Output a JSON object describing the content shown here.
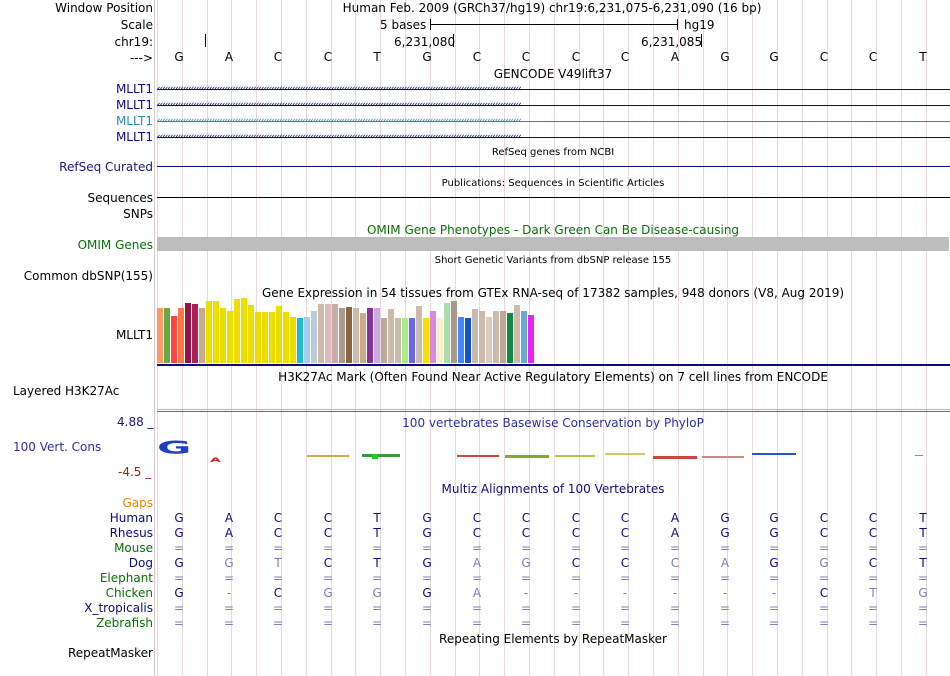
{
  "header": {
    "window_position_label": "Window Position",
    "assembly_position": "Human Feb. 2009 (GRCh37/hg19)   chr19:6,231,075-6,231,090 (16 bp)",
    "scale_label": "Scale",
    "scale_text": "5 bases",
    "scale_db": "hg19",
    "chrom_label": "chr19:",
    "coord_1": "6,231,080",
    "coord_2": "6,231,085",
    "strand_label": "--->"
  },
  "sequence": [
    "G",
    "A",
    "C",
    "C",
    "T",
    "G",
    "C",
    "C",
    "C",
    "C",
    "A",
    "G",
    "G",
    "C",
    "C",
    "T"
  ],
  "gencode": {
    "title": "GENCODE V49lift37",
    "tracks": [
      {
        "name": "MLLT1",
        "color": "#0c0c78"
      },
      {
        "name": "MLLT1",
        "color": "#0c0c78"
      },
      {
        "name": "MLLT1",
        "color": "#2e87b3"
      },
      {
        "name": "MLLT1",
        "color": "#0c0c78"
      }
    ],
    "arrow_glyph": "‹"
  },
  "refseq": {
    "label": "RefSeq Curated",
    "title": "RefSeq genes from NCBI"
  },
  "publications": {
    "label": "Sequences",
    "title": "Publications: Sequences in Scientific Articles"
  },
  "snps": {
    "label": "SNPs"
  },
  "omim": {
    "label": "OMIM Genes",
    "title": "OMIM Gene Phenotypes - Dark Green Can Be Disease-causing"
  },
  "dbsnp": {
    "label": "Common dbSNP(155)",
    "title": "Short Genetic Variants from dbSNP release 155"
  },
  "gtex": {
    "label": "MLLT1",
    "title": "Gene Expression in 54 tissues from GTEx RNA-seq of 17382 samples, 948 donors (V8, Aug 2019)",
    "values": [
      55,
      55,
      47,
      55,
      60,
      59,
      55,
      62,
      62,
      55,
      52,
      64,
      65,
      58,
      51,
      51,
      51,
      57,
      51,
      46,
      45,
      46,
      52,
      59,
      59,
      59,
      55,
      56,
      55,
      50,
      55,
      55,
      45,
      54,
      45,
      45,
      45,
      57,
      45,
      52,
      45,
      60,
      62,
      46,
      45,
      54,
      52,
      46,
      52,
      52,
      50,
      58,
      52,
      48
    ],
    "colors": [
      "#ff9966",
      "#66aa44",
      "#ff4444",
      "#ff7744",
      "#991144",
      "#aa2255",
      "#ccaa88",
      "#eedd00",
      "#eedd00",
      "#eedd00",
      "#eedd00",
      "#eedd00",
      "#eedd00",
      "#eedd00",
      "#eedd00",
      "#eedd00",
      "#eedd00",
      "#eedd00",
      "#eedd00",
      "#eedd00",
      "#22bbcc",
      "#aaccee",
      "#bbccdd",
      "#ccbbaa",
      "#ddbbbb",
      "#ccaaaa",
      "#aa9988",
      "#886644",
      "#ccbbaa",
      "#ccaa88",
      "#883399",
      "#ccaadd",
      "#bbaa99",
      "#ccbbaa",
      "#ccbbaa",
      "#aaee88",
      "#6666ee",
      "#ccbbaa",
      "#ffdd00",
      "#dd88dd",
      "#ffeecc",
      "#aaddaa",
      "#aa9988",
      "#4488ff",
      "#1155cc",
      "#ccbbaa",
      "#ccbbaa",
      "#ddccbb",
      "#ccbbaa",
      "#bbaa99",
      "#118844",
      "#ccbbaa",
      "#66aadd",
      "#ee22ee"
    ]
  },
  "h3k27ac": {
    "label": "Layered H3K27Ac",
    "title": "H3K27Ac Mark (Often Found Near Active Regulatory Elements) on 7 cell lines from ENCODE"
  },
  "phylop": {
    "label": "100 Vert. Cons",
    "title": "100 vertebrates Basewise Conservation by PhyloP",
    "max_label": "4.88 _",
    "min_label": "-4.5 _"
  },
  "multiz": {
    "title": "Multiz Alignments of 100 Vertebrates",
    "gaps_label": "Gaps",
    "species": [
      {
        "name": "Human",
        "color": "#0c0c78",
        "bases": [
          "G",
          "A",
          "C",
          "C",
          "T",
          "G",
          "C",
          "C",
          "C",
          "C",
          "A",
          "G",
          "G",
          "C",
          "C",
          "T"
        ]
      },
      {
        "name": "Rhesus",
        "color": "#0c0c78",
        "bases": [
          "G",
          "A",
          "C",
          "C",
          "T",
          "G",
          "C",
          "C",
          "C",
          "C",
          "A",
          "G",
          "G",
          "C",
          "C",
          "T"
        ]
      },
      {
        "name": "Mouse",
        "color": "#0a6e0a",
        "bases": [
          "=",
          "=",
          "=",
          "=",
          "=",
          "=",
          "=",
          "=",
          "=",
          "=",
          "=",
          "=",
          "=",
          "=",
          "=",
          "="
        ]
      },
      {
        "name": "Dog",
        "color": "#0c0c78",
        "bases": [
          "G",
          "G",
          "T",
          "C",
          "T",
          "G",
          "A",
          "G",
          "C",
          "C",
          "C",
          "A",
          "G",
          "G",
          "C",
          "T"
        ]
      },
      {
        "name": "Elephant",
        "color": "#0a6e0a",
        "bases": [
          "=",
          "=",
          "=",
          "=",
          "=",
          "=",
          "=",
          "=",
          "=",
          "=",
          "=",
          "=",
          "=",
          "=",
          "=",
          "="
        ]
      },
      {
        "name": "Chicken",
        "color": "#0a6e0a",
        "bases": [
          "G",
          "-",
          "C",
          "G",
          "G",
          "G",
          "A",
          "-",
          "-",
          "-",
          "-",
          "-",
          "-",
          "C",
          "T",
          "G"
        ]
      },
      {
        "name": "X_tropicalis",
        "color": "#0c0c78",
        "bases": [
          "=",
          "=",
          "=",
          "=",
          "=",
          "=",
          "=",
          "=",
          "=",
          "=",
          "=",
          "=",
          "=",
          "=",
          "=",
          "="
        ]
      },
      {
        "name": "Zebrafish",
        "color": "#0a6e0a",
        "bases": [
          "=",
          "=",
          "=",
          "=",
          "=",
          "=",
          "=",
          "=",
          "=",
          "=",
          "=",
          "=",
          "=",
          "=",
          "=",
          "="
        ]
      }
    ]
  },
  "repeatmasker": {
    "label": "RepeatMasker",
    "title": "Repeating Elements by RepeatMasker"
  }
}
